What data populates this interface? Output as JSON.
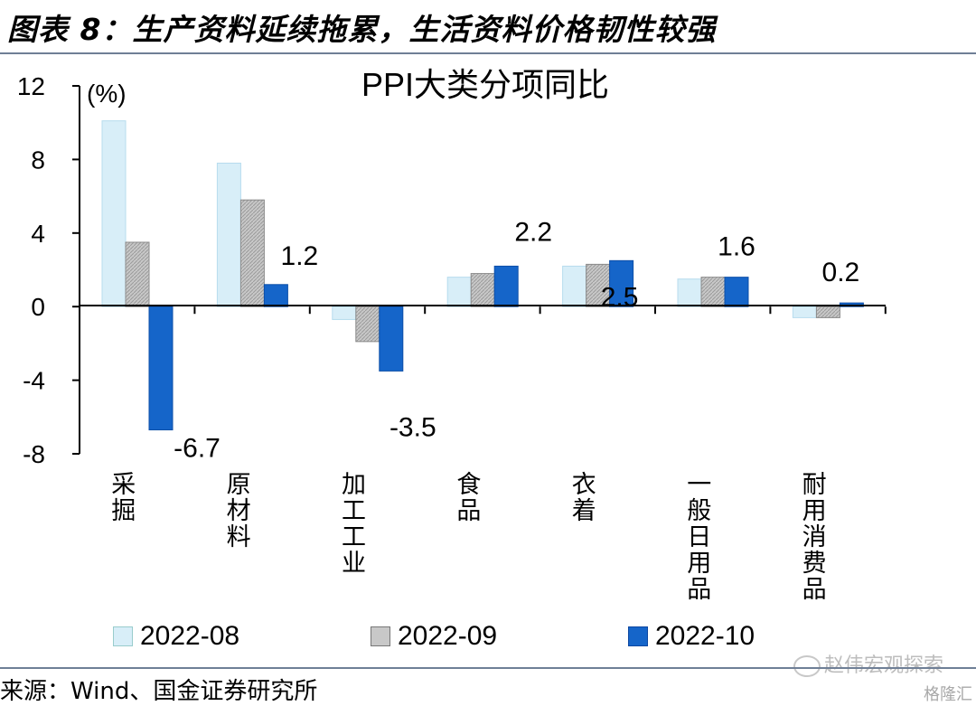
{
  "figure_title": "图表 8：生产资料延续拖累，生活资料价格韧性较强",
  "source_text": "来源：Wind、国金证券研究所",
  "watermark_text": "赵伟宏观探索",
  "brand_text": "格隆汇",
  "colors": {
    "s2022_08": "#d8eef8",
    "s2022_09": "#c8c8c8",
    "s2022_10": "#1565c9",
    "rule": "#6f7f96"
  },
  "chart_data": {
    "type": "bar",
    "title": "PPI大类分项同比",
    "ylabel": "(%)",
    "ylim": [
      -8,
      12
    ],
    "yticks": [
      12,
      8,
      4,
      0,
      -4,
      -8
    ],
    "grid": false,
    "legend_position": "bottom",
    "categories": [
      "采掘",
      "原材料",
      "加工工业",
      "食品",
      "衣着",
      "一般日用品",
      "耐用消费品"
    ],
    "series": [
      {
        "name": "2022-08",
        "values": [
          10.1,
          7.8,
          -0.7,
          1.6,
          2.2,
          1.5,
          -0.6
        ]
      },
      {
        "name": "2022-09",
        "values": [
          3.5,
          5.8,
          -1.9,
          1.8,
          2.3,
          1.6,
          -0.6
        ]
      },
      {
        "name": "2022-10",
        "values": [
          -6.7,
          1.2,
          -3.5,
          2.2,
          2.5,
          1.6,
          0.2
        ]
      }
    ],
    "data_labels": [
      "-6.7",
      "1.2",
      "-3.5",
      "2.2",
      "2.5",
      "1.6",
      "0.2"
    ]
  }
}
